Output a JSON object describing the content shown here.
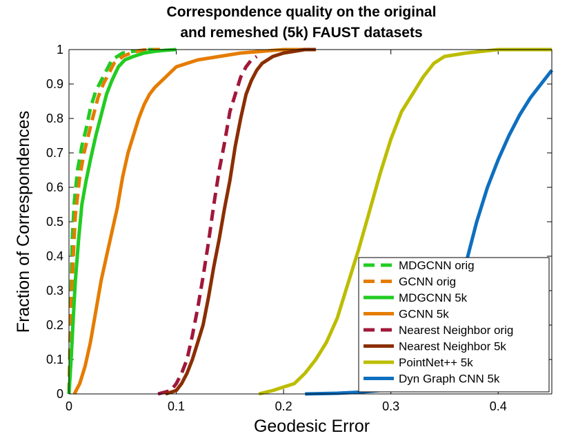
{
  "chart_data": {
    "type": "line",
    "title": [
      "Correspondence quality on the original",
      "and remeshed (5k) FAUST datasets"
    ],
    "xlabel": "Geodesic Error",
    "ylabel": "Fraction of Correspondences",
    "xlim": [
      0,
      0.45
    ],
    "ylim": [
      0,
      1
    ],
    "xticks": [
      0,
      0.1,
      0.2,
      0.3,
      0.4
    ],
    "xtick_labels": [
      "0",
      "0.1",
      "0.2",
      "0.3",
      "0.4"
    ],
    "yticks": [
      0,
      0.1,
      0.2,
      0.3,
      0.4,
      0.5,
      0.6,
      0.7,
      0.8,
      0.9,
      1
    ],
    "ytick_labels": [
      "0",
      "0.1",
      "0.2",
      "0.3",
      "0.4",
      "0.5",
      "0.6",
      "0.7",
      "0.8",
      "0.9",
      "1"
    ],
    "grid": false,
    "legend_position": "bottom-right",
    "series": [
      {
        "name": "MDGCNN orig",
        "color": "#22cc22",
        "dash": true,
        "x": [
          0,
          0.001,
          0.002,
          0.003,
          0.005,
          0.008,
          0.012,
          0.016,
          0.02,
          0.025,
          0.03,
          0.035,
          0.04,
          0.05,
          0.06,
          0.075,
          0.09
        ],
        "y": [
          0,
          0.15,
          0.3,
          0.45,
          0.56,
          0.65,
          0.72,
          0.77,
          0.83,
          0.88,
          0.91,
          0.94,
          0.97,
          0.99,
          0.995,
          1.0,
          1.0
        ]
      },
      {
        "name": "GCNN orig",
        "color": "#e57c00",
        "dash": true,
        "x": [
          0,
          0.001,
          0.002,
          0.004,
          0.006,
          0.01,
          0.014,
          0.018,
          0.022,
          0.027,
          0.032,
          0.037,
          0.042,
          0.05,
          0.06,
          0.07,
          0.085
        ],
        "y": [
          0,
          0.12,
          0.25,
          0.4,
          0.52,
          0.63,
          0.7,
          0.75,
          0.8,
          0.86,
          0.9,
          0.93,
          0.96,
          0.98,
          0.993,
          0.999,
          1.0
        ]
      },
      {
        "name": "MDGCNN 5k",
        "color": "#22cc22",
        "dash": false,
        "x": [
          0,
          0.002,
          0.004,
          0.006,
          0.009,
          0.012,
          0.016,
          0.02,
          0.025,
          0.03,
          0.035,
          0.04,
          0.046,
          0.052,
          0.06,
          0.07,
          0.08,
          0.09,
          0.1
        ],
        "y": [
          0,
          0.1,
          0.22,
          0.33,
          0.45,
          0.55,
          0.62,
          0.68,
          0.75,
          0.81,
          0.87,
          0.91,
          0.95,
          0.97,
          0.98,
          0.99,
          0.995,
          0.998,
          1.0
        ]
      },
      {
        "name": "GCNN 5k",
        "color": "#e57c00",
        "dash": false,
        "x": [
          0.005,
          0.01,
          0.015,
          0.02,
          0.025,
          0.03,
          0.035,
          0.04,
          0.045,
          0.05,
          0.055,
          0.06,
          0.065,
          0.07,
          0.075,
          0.08,
          0.09,
          0.1,
          0.11,
          0.12,
          0.14,
          0.16,
          0.18,
          0.2,
          0.23
        ],
        "y": [
          0,
          0.03,
          0.08,
          0.15,
          0.24,
          0.33,
          0.4,
          0.47,
          0.54,
          0.63,
          0.7,
          0.75,
          0.8,
          0.84,
          0.87,
          0.89,
          0.92,
          0.95,
          0.96,
          0.97,
          0.98,
          0.99,
          0.995,
          1.0,
          1.0
        ]
      },
      {
        "name": "Nearest Neighbor orig",
        "color": "#a0183a",
        "dash": true,
        "x": [
          0.083,
          0.095,
          0.1,
          0.105,
          0.11,
          0.115,
          0.12,
          0.125,
          0.13,
          0.135,
          0.14,
          0.145,
          0.15,
          0.155,
          0.16,
          0.165,
          0.17,
          0.175
        ],
        "y": [
          0,
          0.01,
          0.03,
          0.06,
          0.1,
          0.17,
          0.25,
          0.34,
          0.44,
          0.55,
          0.65,
          0.73,
          0.82,
          0.87,
          0.92,
          0.95,
          0.97,
          0.98
        ]
      },
      {
        "name": "Nearest Neighbor 5k",
        "color": "#8b2e00",
        "dash": false,
        "x": [
          0.09,
          0.1,
          0.105,
          0.11,
          0.115,
          0.12,
          0.125,
          0.13,
          0.135,
          0.14,
          0.145,
          0.15,
          0.155,
          0.16,
          0.165,
          0.17,
          0.175,
          0.18,
          0.19,
          0.2,
          0.22,
          0.23
        ],
        "y": [
          0,
          0.01,
          0.03,
          0.06,
          0.1,
          0.15,
          0.2,
          0.28,
          0.37,
          0.45,
          0.54,
          0.62,
          0.72,
          0.8,
          0.87,
          0.91,
          0.94,
          0.96,
          0.98,
          0.99,
          1.0,
          1.0
        ]
      },
      {
        "name": "PointNet++ 5k",
        "color": "#bcbd00",
        "dash": false,
        "x": [
          0.177,
          0.19,
          0.2,
          0.21,
          0.22,
          0.23,
          0.24,
          0.25,
          0.26,
          0.27,
          0.28,
          0.29,
          0.3,
          0.31,
          0.32,
          0.33,
          0.34,
          0.35,
          0.37,
          0.4,
          0.45
        ],
        "y": [
          0,
          0.01,
          0.02,
          0.03,
          0.06,
          0.1,
          0.15,
          0.22,
          0.32,
          0.42,
          0.53,
          0.64,
          0.74,
          0.82,
          0.87,
          0.92,
          0.96,
          0.98,
          0.99,
          1.0,
          1.0
        ]
      },
      {
        "name": "Dyn Graph CNN 5k",
        "color": "#0e6fbf",
        "dash": false,
        "x": [
          0.22,
          0.25,
          0.27,
          0.29,
          0.31,
          0.33,
          0.35,
          0.36,
          0.37,
          0.38,
          0.39,
          0.4,
          0.41,
          0.42,
          0.43,
          0.44,
          0.45
        ],
        "y": [
          0,
          0.002,
          0.005,
          0.01,
          0.03,
          0.07,
          0.15,
          0.22,
          0.38,
          0.5,
          0.6,
          0.68,
          0.75,
          0.81,
          0.86,
          0.9,
          0.94
        ]
      }
    ]
  }
}
